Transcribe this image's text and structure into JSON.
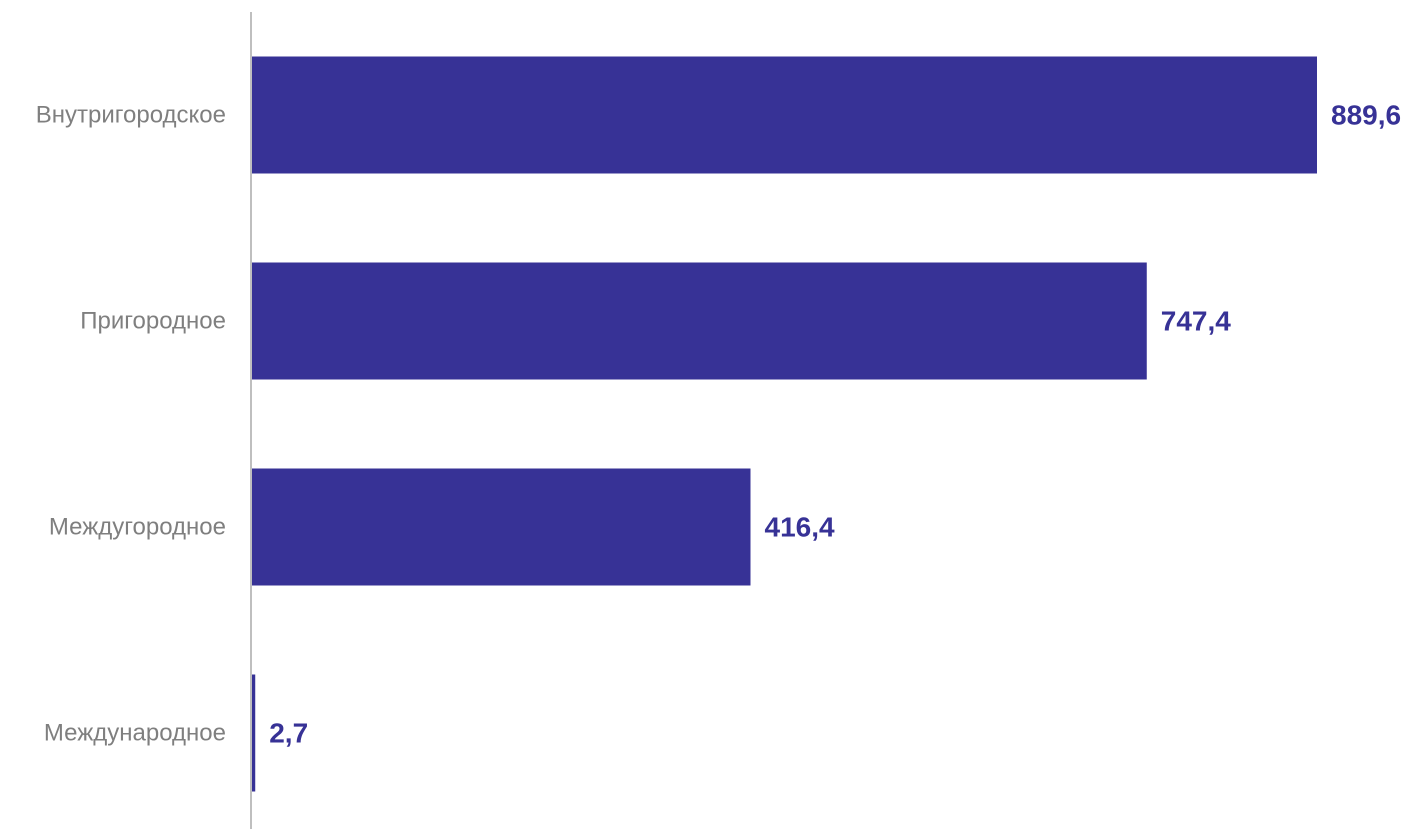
{
  "chart_data": {
    "type": "bar",
    "orientation": "horizontal",
    "title": "",
    "xlabel": "",
    "ylabel": "",
    "categories": [
      "Внутригородское",
      "Пригородное",
      "Междугородное",
      "Международное"
    ],
    "values": [
      889.6,
      747.4,
      416.4,
      2.7
    ],
    "value_labels": [
      "889,6",
      "747,4",
      "416,4",
      "2,7"
    ],
    "xlim": [
      0,
      889.6
    ],
    "grid": false,
    "legend": "none",
    "colors": {
      "bar": "#373296",
      "value_label": "#373296",
      "category_label": "#7f7f7f",
      "axis": "#bfbfbf"
    }
  }
}
